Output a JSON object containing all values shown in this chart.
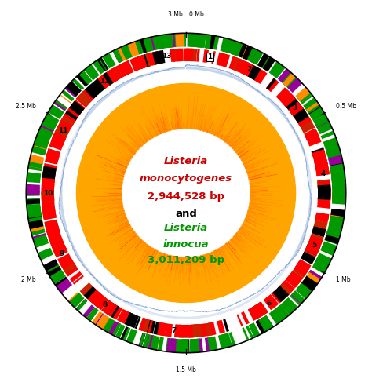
{
  "title_line1": "Listeria",
  "title_line2": "monocytogenes",
  "title_line3": "2,944,528 bp",
  "title_and": "and",
  "title_line4": "Listeria",
  "title_line5": "innocua",
  "title_line6": "3,011,209 bp",
  "color_red": "#FF0000",
  "color_green": "#009900",
  "color_black": "#000000",
  "color_purple": "#990099",
  "color_orange": "#FF8C00",
  "color_blue": "#7B9FD4",
  "color_gold": "#FFA500",
  "color_white": "#FFFFFF",
  "genome_size": 3011209,
  "figsize": [
    4.74,
    4.92
  ],
  "dpi": 100,
  "segment_labels": [
    "1",
    "2",
    "3",
    "4",
    "5",
    "6",
    "7",
    "8",
    "9",
    "10",
    "11",
    "12",
    "13"
  ],
  "segment_angles_deg": [
    10,
    27,
    52,
    82,
    112,
    143,
    185,
    216,
    244,
    270,
    297,
    324,
    352
  ],
  "outer_ring_r": 1.0,
  "r_green_outer": 1.0,
  "r_green_inner": 0.915,
  "r_red_outer": 0.905,
  "r_red_inner": 0.825,
  "r_blue_base": 0.775,
  "r_blue_amp": 0.04,
  "r_gold_outer": 0.685,
  "r_gold_inner": 0.4,
  "r_white_inner": 0.395,
  "label_r": 1.085,
  "seg_r": 0.865,
  "tick_outer": 1.005,
  "tick_inner": 0.975
}
